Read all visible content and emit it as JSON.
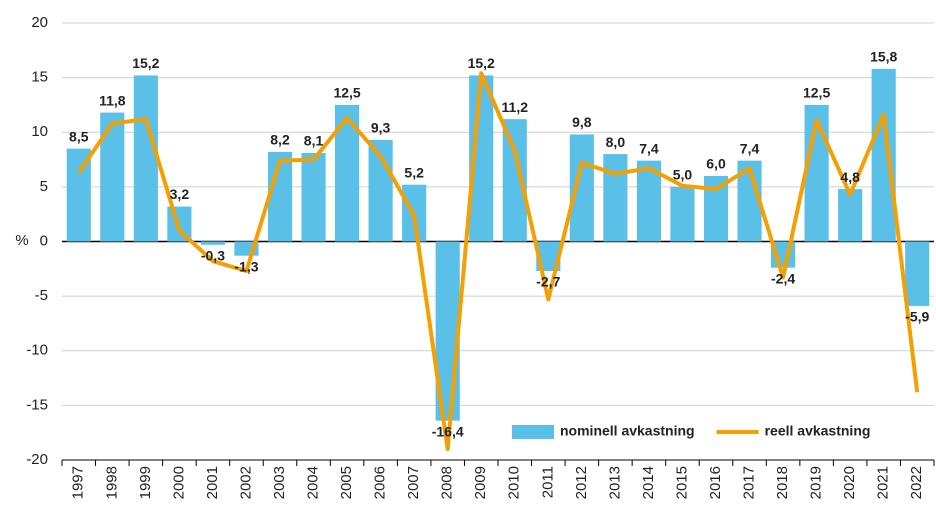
{
  "chart_data": {
    "type": "bar",
    "ylabel": "%",
    "categories": [
      "1997",
      "1998",
      "1999",
      "2000",
      "2001",
      "2002",
      "2003",
      "2004",
      "2005",
      "2006",
      "2007",
      "2008",
      "2009",
      "2010",
      "2011",
      "2012",
      "2013",
      "2014",
      "2015",
      "2016",
      "2017",
      "2018",
      "2019",
      "2020",
      "2021",
      "2022"
    ],
    "series": [
      {
        "name": "nominell avkastning",
        "type": "bar",
        "color": "#5bc0e8",
        "values": [
          8.5,
          11.8,
          15.2,
          3.2,
          -0.3,
          -1.3,
          8.2,
          8.1,
          12.5,
          9.3,
          5.2,
          -16.4,
          15.2,
          11.2,
          -2.7,
          9.8,
          8.0,
          7.4,
          5.0,
          6.0,
          7.4,
          -2.4,
          12.5,
          4.8,
          15.8,
          -5.9
        ],
        "value_labels": [
          "8,5",
          "11,8",
          "15,2",
          "3,2",
          "-0,3",
          "-1,3",
          "8,2",
          "8,1",
          "12,5",
          "9,3",
          "5,2",
          "-16,4",
          "15,2",
          "11,2",
          "-2,7",
          "9,8",
          "8,0",
          "7,4",
          "5,0",
          "6,0",
          "7,4",
          "-2,4",
          "12,5",
          "4,8",
          "15,8",
          "-5,9"
        ]
      },
      {
        "name": "reell avkastning",
        "type": "line",
        "color": "#f5a000",
        "values": [
          6.3,
          10.8,
          11.2,
          1.0,
          -1.8,
          -2.7,
          7.4,
          7.5,
          11.3,
          7.8,
          2.4,
          -19.0,
          15.4,
          8.3,
          -5.3,
          7.2,
          6.2,
          6.7,
          5.1,
          4.8,
          6.7,
          -3.3,
          11.1,
          4.3,
          11.6,
          -13.8
        ]
      }
    ],
    "ylim": [
      -20,
      20
    ],
    "yticks": [
      -20,
      -15,
      -10,
      -5,
      0,
      5,
      10,
      15,
      20
    ],
    "grid": true,
    "legend": "bottom-right"
  }
}
